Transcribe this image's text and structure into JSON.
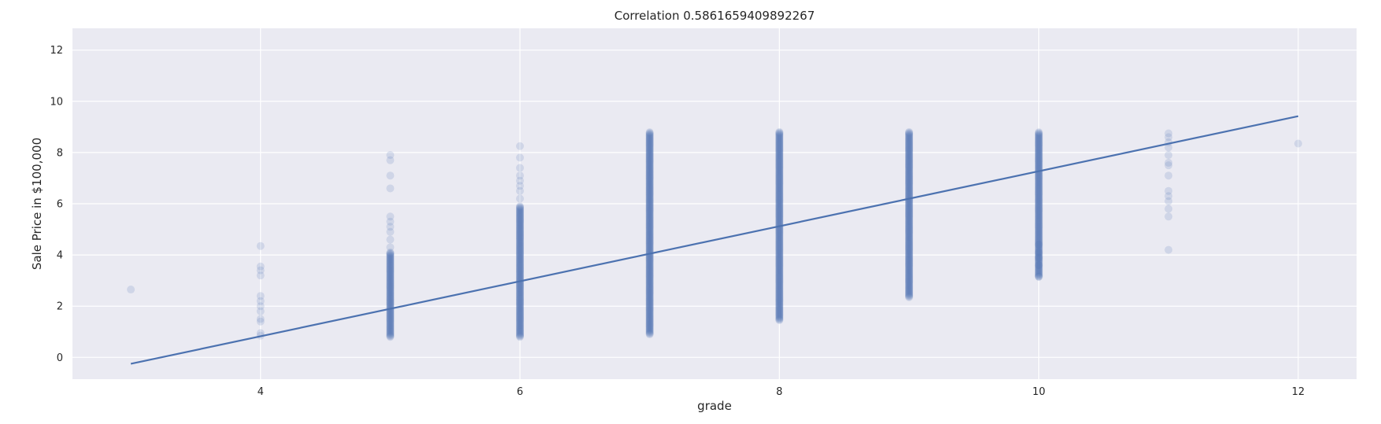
{
  "chart_data": {
    "type": "scatter",
    "title": "Correlation 0.5861659409892267",
    "xlabel": "grade",
    "ylabel": "Sale Price in $100,000",
    "xlim": [
      2.55,
      12.45
    ],
    "ylim": [
      -0.85,
      12.85
    ],
    "x_ticks": [
      4,
      6,
      8,
      10,
      12
    ],
    "y_ticks": [
      0,
      2,
      4,
      6,
      8,
      10,
      12
    ],
    "grid": true,
    "background": "#eaeaf2",
    "grid_color": "#ffffff",
    "point_color": "#4c72b0",
    "line_color": "#4c72b0",
    "scatter_groups": [
      {
        "x": 3,
        "y_values": [
          2.65
        ]
      },
      {
        "x": 4,
        "y_values": [
          0.85,
          0.95,
          1.4,
          1.5,
          1.8,
          2.0,
          2.2,
          2.4,
          3.2,
          3.4,
          3.55,
          4.35
        ]
      },
      {
        "x": 5,
        "y_min": 0.8,
        "y_dense_max": 4.1,
        "y_outliers": [
          4.3,
          4.6,
          4.9,
          5.1,
          5.3,
          5.5,
          6.6,
          7.1,
          7.7,
          7.9
        ]
      },
      {
        "x": 6,
        "y_min": 0.8,
        "y_dense_max": 5.9,
        "y_outliers": [
          6.2,
          6.5,
          6.7,
          6.9,
          7.1,
          7.4,
          7.8,
          8.25
        ]
      },
      {
        "x": 7,
        "y_min": 0.9,
        "y_dense_max": 8.8,
        "y_outliers": []
      },
      {
        "x": 8,
        "y_min": 1.45,
        "y_dense_max": 8.8,
        "y_outliers": []
      },
      {
        "x": 9,
        "y_min": 2.35,
        "y_dense_max": 8.8,
        "y_outliers": []
      },
      {
        "x": 10,
        "y_min": 3.15,
        "y_dense_max": 8.8,
        "y_outliers": [
          3.15,
          3.6,
          3.9,
          4.1,
          4.4
        ]
      },
      {
        "x": 11,
        "y_values": [
          4.2,
          5.5,
          5.8,
          6.1,
          6.3,
          6.5,
          7.1,
          7.5,
          7.6,
          7.9,
          8.2,
          8.4,
          8.6,
          8.75
        ]
      },
      {
        "x": 12,
        "y_values": [
          8.35
        ]
      }
    ],
    "regression_line": {
      "x": [
        3,
        12
      ],
      "y": [
        -0.25,
        9.42
      ]
    }
  }
}
